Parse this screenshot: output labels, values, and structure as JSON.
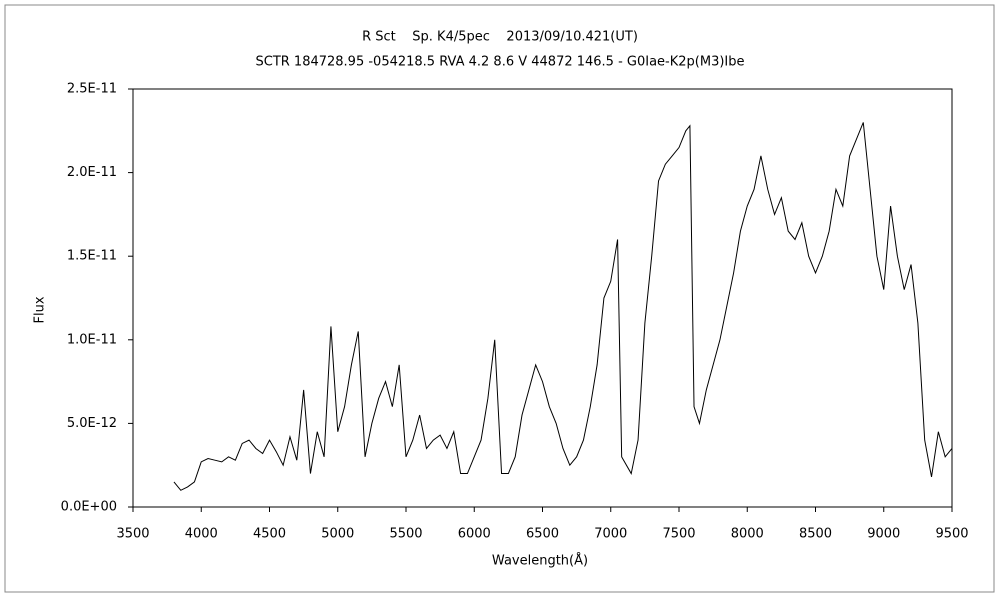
{
  "chart_data": {
    "type": "line",
    "title": "R Sct    Sp. K4/5pec    2013/09/10.421(UT)",
    "subtitle": "SCTR 184728.95 -054218.5 RVA 4.2 8.6 V 44872 146.5 - G0Iae-K2p(M3)Ibe",
    "xlabel": "Wavelength(Å)",
    "ylabel": "Flux",
    "color": "#000000",
    "xlim": [
      3500,
      9500
    ],
    "xticks": [
      3500,
      4000,
      4500,
      5000,
      5500,
      6000,
      6500,
      7000,
      7500,
      8000,
      8500,
      9000,
      9500
    ],
    "ylim": [
      0,
      2.5e-11
    ],
    "yticks": [
      {
        "value": 0,
        "label": "0.0E+00"
      },
      {
        "value": 5e-12,
        "label": "5.0E-12"
      },
      {
        "value": 1e-11,
        "label": "1.0E-11"
      },
      {
        "value": 1.5e-11,
        "label": "1.5E-11"
      },
      {
        "value": 2e-11,
        "label": "2.0E-11"
      },
      {
        "value": 2.5e-11,
        "label": "2.5E-11"
      }
    ],
    "x": [
      3800,
      3850,
      3900,
      3950,
      4000,
      4050,
      4100,
      4150,
      4200,
      4250,
      4300,
      4350,
      4400,
      4450,
      4500,
      4550,
      4600,
      4650,
      4700,
      4750,
      4800,
      4850,
      4900,
      4950,
      5000,
      5050,
      5100,
      5150,
      5200,
      5250,
      5300,
      5350,
      5400,
      5450,
      5500,
      5550,
      5600,
      5650,
      5700,
      5750,
      5800,
      5850,
      5900,
      5950,
      6000,
      6050,
      6100,
      6150,
      6200,
      6250,
      6300,
      6350,
      6400,
      6450,
      6500,
      6550,
      6600,
      6650,
      6700,
      6750,
      6800,
      6850,
      6900,
      6950,
      7000,
      7050,
      7080,
      7150,
      7200,
      7250,
      7300,
      7350,
      7400,
      7450,
      7500,
      7550,
      7580,
      7610,
      7650,
      7700,
      7750,
      7800,
      7850,
      7900,
      7950,
      8000,
      8050,
      8100,
      8150,
      8200,
      8250,
      8300,
      8350,
      8400,
      8450,
      8500,
      8550,
      8600,
      8650,
      8700,
      8750,
      8800,
      8850,
      8900,
      8950,
      9000,
      9050,
      9100,
      9150,
      9200,
      9250,
      9300,
      9350,
      9400,
      9450,
      9500
    ],
    "values": [
      1.5e-12,
      1e-12,
      1.2e-12,
      1.5e-12,
      2.7e-12,
      2.9e-12,
      2.8e-12,
      2.7e-12,
      3e-12,
      2.8e-12,
      3.8e-12,
      4e-12,
      3.5e-12,
      3.2e-12,
      4e-12,
      3.3e-12,
      2.5e-12,
      4.2e-12,
      2.8e-12,
      7e-12,
      2e-12,
      4.5e-12,
      3e-12,
      1.08e-11,
      4.5e-12,
      6e-12,
      8.5e-12,
      1.05e-11,
      3e-12,
      5e-12,
      6.5e-12,
      7.5e-12,
      6e-12,
      8.5e-12,
      3e-12,
      4e-12,
      5.5e-12,
      3.5e-12,
      4e-12,
      4.3e-12,
      3.5e-12,
      4.5e-12,
      2e-12,
      2e-12,
      3e-12,
      4e-12,
      6.5e-12,
      1e-11,
      2e-12,
      2e-12,
      3e-12,
      5.5e-12,
      7e-12,
      8.5e-12,
      7.5e-12,
      6e-12,
      5e-12,
      3.5e-12,
      2.5e-12,
      3e-12,
      4e-12,
      6e-12,
      8.5e-12,
      1.25e-11,
      1.35e-11,
      1.6e-11,
      3e-12,
      2e-12,
      4e-12,
      1.1e-11,
      1.5e-11,
      1.95e-11,
      2.05e-11,
      2.1e-11,
      2.15e-11,
      2.25e-11,
      2.28e-11,
      6e-12,
      5e-12,
      7e-12,
      8.5e-12,
      1e-11,
      1.2e-11,
      1.4e-11,
      1.65e-11,
      1.8e-11,
      1.9e-11,
      2.1e-11,
      1.9e-11,
      1.75e-11,
      1.85e-11,
      1.65e-11,
      1.6e-11,
      1.7e-11,
      1.5e-11,
      1.4e-11,
      1.5e-11,
      1.65e-11,
      1.9e-11,
      1.8e-11,
      2.1e-11,
      2.2e-11,
      2.3e-11,
      1.9e-11,
      1.5e-11,
      1.3e-11,
      1.8e-11,
      1.5e-11,
      1.3e-11,
      1.45e-11,
      1.1e-11,
      4e-12,
      1.8e-12,
      4.5e-12,
      3e-12,
      3.5e-12
    ]
  }
}
